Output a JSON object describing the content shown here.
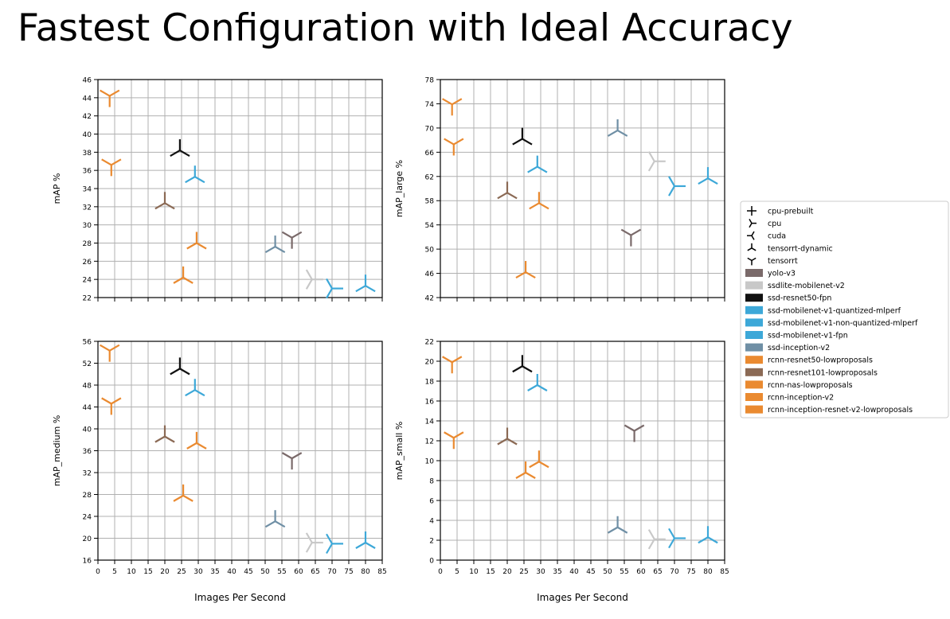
{
  "title": "Fastest Configuration with Ideal Accuracy",
  "colors": {
    "yolo-v3": "#7a6a6a",
    "ssdlite-mobilenet-v2": "#c8c8c8",
    "ssd-resnet50-fpn": "#111111",
    "ssd-mobilenet-v1-quantized-mlperf": "#3da8d8",
    "ssd-mobilenet-v1-non-quantized-mlperf": "#3da8d8",
    "ssd-mobilenet-v1-fpn": "#3da8d8",
    "ssd-inception-v2": "#6f8fa5",
    "rcnn-resnet50-lowproposals": "#ea8a30",
    "rcnn-resnet101-lowproposals": "#8b6a55",
    "rcnn-nas-lowproposals": "#ea8a30",
    "rcnn-inception-v2": "#ea8a30",
    "rcnn-inception-resnet-v2-lowproposals": "#ea8a30"
  },
  "legend": {
    "position": "right",
    "markers": [
      {
        "label": " cpu-prebuilt",
        "icon": "plus-marker"
      },
      {
        "label": " cpu",
        "icon": "tri-right-marker"
      },
      {
        "label": "cuda",
        "icon": "tri-left-marker"
      },
      {
        "label": "tensorrt-dynamic",
        "icon": "tri-up-marker"
      },
      {
        "label": "tensorrt",
        "icon": "tri-down-marker"
      }
    ],
    "models": [
      {
        "label": "yolo-v3",
        "key": "yolo-v3"
      },
      {
        "label": "ssdlite-mobilenet-v2",
        "key": "ssdlite-mobilenet-v2"
      },
      {
        "label": "ssd-resnet50-fpn",
        "key": "ssd-resnet50-fpn"
      },
      {
        "label": "ssd-mobilenet-v1-quantized-mlperf",
        "key": "ssd-mobilenet-v1-quantized-mlperf"
      },
      {
        "label": "ssd-mobilenet-v1-non-quantized-mlperf",
        "key": "ssd-mobilenet-v1-non-quantized-mlperf"
      },
      {
        "label": "ssd-mobilenet-v1-fpn",
        "key": "ssd-mobilenet-v1-fpn"
      },
      {
        "label": "ssd-inception-v2",
        "key": "ssd-inception-v2"
      },
      {
        "label": "rcnn-resnet50-lowproposals",
        "key": "rcnn-resnet50-lowproposals"
      },
      {
        "label": "rcnn-resnet101-lowproposals",
        "key": "rcnn-resnet101-lowproposals"
      },
      {
        "label": "rcnn-nas-lowproposals",
        "key": "rcnn-nas-lowproposals"
      },
      {
        "label": "rcnn-inception-v2",
        "key": "rcnn-inception-v2"
      },
      {
        "label": "rcnn-inception-resnet-v2-lowproposals",
        "key": "rcnn-inception-resnet-v2-lowproposals"
      }
    ]
  },
  "chart_data": [
    {
      "type": "scatter",
      "ylabel": "mAP %",
      "xlabel": "",
      "xlim": [
        0,
        85
      ],
      "ylim": [
        22,
        46
      ],
      "xticks": [
        0,
        5,
        10,
        15,
        20,
        25,
        30,
        35,
        40,
        45,
        50,
        55,
        60,
        65,
        70,
        75,
        80,
        85
      ],
      "yticks": [
        22,
        24,
        26,
        28,
        30,
        32,
        34,
        36,
        38,
        40,
        42,
        44,
        46
      ],
      "show_xticklabels": false,
      "grid": true,
      "points": [
        {
          "model": "rcnn-nas-lowproposals",
          "marker": "tri-down",
          "x": 3.5,
          "y": 44.2
        },
        {
          "model": "rcnn-inception-resnet-v2-lowproposals",
          "marker": "tri-down",
          "x": 4,
          "y": 36.6
        },
        {
          "model": "ssd-resnet50-fpn",
          "marker": "tri-up",
          "x": 24.5,
          "y": 38.2
        },
        {
          "model": "ssd-mobilenet-v1-fpn",
          "marker": "tri-up",
          "x": 29,
          "y": 35.3
        },
        {
          "model": "rcnn-resnet101-lowproposals",
          "marker": "tri-up",
          "x": 20,
          "y": 32.4
        },
        {
          "model": "rcnn-resnet50-lowproposals",
          "marker": "tri-up",
          "x": 29.5,
          "y": 28
        },
        {
          "model": "rcnn-inception-v2",
          "marker": "tri-up",
          "x": 25.5,
          "y": 24.2
        },
        {
          "model": "ssd-inception-v2",
          "marker": "tri-up",
          "x": 53,
          "y": 27.6
        },
        {
          "model": "yolo-v3",
          "marker": "tri-down",
          "x": 58,
          "y": 28.6
        },
        {
          "model": "ssdlite-mobilenet-v2",
          "marker": "tri-right",
          "x": 64,
          "y": 24
        },
        {
          "model": "ssd-mobilenet-v1-quantized-mlperf",
          "marker": "tri-right",
          "x": 70,
          "y": 23
        },
        {
          "model": "ssd-mobilenet-v1-non-quantized-mlperf",
          "marker": "tri-up",
          "x": 80,
          "y": 23.3
        }
      ]
    },
    {
      "type": "scatter",
      "ylabel": "mAP_large %",
      "xlabel": "",
      "xlim": [
        0,
        85
      ],
      "ylim": [
        42,
        78
      ],
      "xticks": [
        0,
        5,
        10,
        15,
        20,
        25,
        30,
        35,
        40,
        45,
        50,
        55,
        60,
        65,
        70,
        75,
        80,
        85
      ],
      "yticks": [
        42,
        46,
        50,
        54,
        58,
        62,
        66,
        70,
        74,
        78
      ],
      "show_xticklabels": false,
      "grid": true,
      "points": [
        {
          "model": "rcnn-nas-lowproposals",
          "marker": "tri-down",
          "x": 3.5,
          "y": 73.9
        },
        {
          "model": "rcnn-inception-resnet-v2-lowproposals",
          "marker": "tri-down",
          "x": 4,
          "y": 67.3
        },
        {
          "model": "ssd-resnet50-fpn",
          "marker": "tri-up",
          "x": 24.5,
          "y": 68.2
        },
        {
          "model": "ssd-mobilenet-v1-fpn",
          "marker": "tri-up",
          "x": 29,
          "y": 63.6
        },
        {
          "model": "rcnn-resnet101-lowproposals",
          "marker": "tri-up",
          "x": 20,
          "y": 59.3
        },
        {
          "model": "rcnn-resnet50-lowproposals",
          "marker": "tri-up",
          "x": 29.5,
          "y": 57.6
        },
        {
          "model": "rcnn-inception-v2",
          "marker": "tri-up",
          "x": 25.5,
          "y": 46.2
        },
        {
          "model": "ssd-inception-v2",
          "marker": "tri-up",
          "x": 53,
          "y": 69.6
        },
        {
          "model": "ssdlite-mobilenet-v2",
          "marker": "tri-right",
          "x": 64,
          "y": 64.5
        },
        {
          "model": "yolo-v3",
          "marker": "tri-down",
          "x": 57,
          "y": 52.3
        },
        {
          "model": "ssd-mobilenet-v1-quantized-mlperf",
          "marker": "tri-right",
          "x": 70,
          "y": 60.4
        },
        {
          "model": "ssd-mobilenet-v1-non-quantized-mlperf",
          "marker": "tri-up",
          "x": 80,
          "y": 61.7
        }
      ]
    },
    {
      "type": "scatter",
      "ylabel": "mAP_medium %",
      "xlabel": "Images Per Second",
      "xlim": [
        0,
        85
      ],
      "ylim": [
        16,
        56
      ],
      "xticks": [
        0,
        5,
        10,
        15,
        20,
        25,
        30,
        35,
        40,
        45,
        50,
        55,
        60,
        65,
        70,
        75,
        80,
        85
      ],
      "yticks": [
        16,
        20,
        24,
        28,
        32,
        36,
        40,
        44,
        48,
        52,
        56
      ],
      "show_xticklabels": true,
      "grid": true,
      "points": [
        {
          "model": "rcnn-nas-lowproposals",
          "marker": "tri-down",
          "x": 3.5,
          "y": 54.3
        },
        {
          "model": "rcnn-inception-resnet-v2-lowproposals",
          "marker": "tri-down",
          "x": 4,
          "y": 44.6
        },
        {
          "model": "ssd-resnet50-fpn",
          "marker": "tri-up",
          "x": 24.5,
          "y": 51
        },
        {
          "model": "ssd-mobilenet-v1-fpn",
          "marker": "tri-up",
          "x": 29,
          "y": 47.1
        },
        {
          "model": "rcnn-resnet101-lowproposals",
          "marker": "tri-up",
          "x": 20,
          "y": 38.6
        },
        {
          "model": "rcnn-resnet50-lowproposals",
          "marker": "tri-up",
          "x": 29.5,
          "y": 37.4
        },
        {
          "model": "rcnn-inception-v2",
          "marker": "tri-up",
          "x": 25.5,
          "y": 27.8
        },
        {
          "model": "yolo-v3",
          "marker": "tri-down",
          "x": 58,
          "y": 34.6
        },
        {
          "model": "ssd-inception-v2",
          "marker": "tri-up",
          "x": 53,
          "y": 23.1
        },
        {
          "model": "ssdlite-mobilenet-v2",
          "marker": "tri-right",
          "x": 64,
          "y": 19.2
        },
        {
          "model": "ssd-mobilenet-v1-quantized-mlperf",
          "marker": "tri-right",
          "x": 70,
          "y": 19
        },
        {
          "model": "ssd-mobilenet-v1-non-quantized-mlperf",
          "marker": "tri-up",
          "x": 80,
          "y": 19.2
        }
      ]
    },
    {
      "type": "scatter",
      "ylabel": "mAP_small %",
      "xlabel": "Images Per Second",
      "xlim": [
        0,
        85
      ],
      "ylim": [
        0,
        22
      ],
      "xticks": [
        0,
        5,
        10,
        15,
        20,
        25,
        30,
        35,
        40,
        45,
        50,
        55,
        60,
        65,
        70,
        75,
        80,
        85
      ],
      "yticks": [
        0,
        2,
        4,
        6,
        8,
        10,
        12,
        14,
        16,
        18,
        20,
        22
      ],
      "show_xticklabels": true,
      "grid": true,
      "points": [
        {
          "model": "rcnn-nas-lowproposals",
          "marker": "tri-down",
          "x": 3.5,
          "y": 19.9
        },
        {
          "model": "rcnn-inception-resnet-v2-lowproposals",
          "marker": "tri-down",
          "x": 4,
          "y": 12.3
        },
        {
          "model": "ssd-resnet50-fpn",
          "marker": "tri-up",
          "x": 24.5,
          "y": 19.5
        },
        {
          "model": "ssd-mobilenet-v1-fpn",
          "marker": "tri-up",
          "x": 29,
          "y": 17.6
        },
        {
          "model": "rcnn-resnet101-lowproposals",
          "marker": "tri-up",
          "x": 20,
          "y": 12.2
        },
        {
          "model": "rcnn-resnet50-lowproposals",
          "marker": "tri-up",
          "x": 29.5,
          "y": 9.9
        },
        {
          "model": "rcnn-inception-v2",
          "marker": "tri-up",
          "x": 25.5,
          "y": 8.8
        },
        {
          "model": "yolo-v3",
          "marker": "tri-down",
          "x": 58,
          "y": 13
        },
        {
          "model": "ssd-inception-v2",
          "marker": "tri-up",
          "x": 53,
          "y": 3.3
        },
        {
          "model": "ssdlite-mobilenet-v2",
          "marker": "tri-right",
          "x": 64,
          "y": 2.1
        },
        {
          "model": "ssd-mobilenet-v1-quantized-mlperf",
          "marker": "tri-right",
          "x": 70,
          "y": 2.2
        },
        {
          "model": "ssd-mobilenet-v1-non-quantized-mlperf",
          "marker": "tri-up",
          "x": 80,
          "y": 2.3
        }
      ]
    }
  ]
}
